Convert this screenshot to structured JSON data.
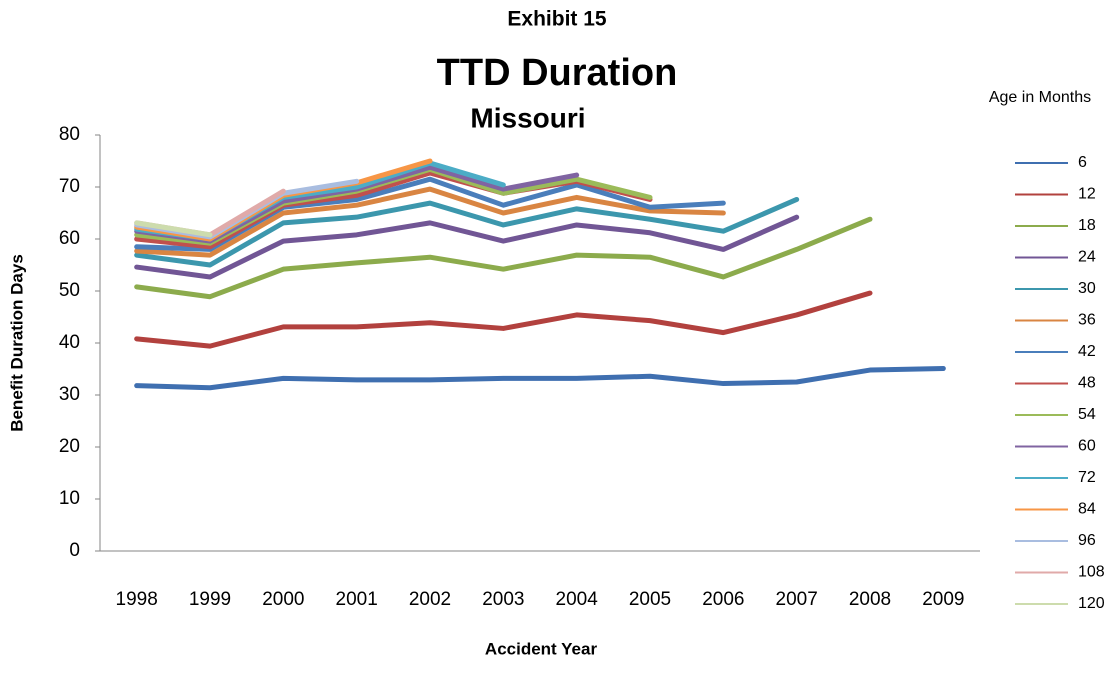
{
  "chart_data": {
    "type": "line",
    "supertitle": "Exhibit 15",
    "title": "TTD Duration",
    "subtitle": "Missouri",
    "x_label": "Accident Year",
    "y_label": "Benefit Duration Days",
    "legend_title": "Age in Months",
    "categories": [
      "1998",
      "1999",
      "2000",
      "2001",
      "2002",
      "2003",
      "2004",
      "2005",
      "2006",
      "2007",
      "2008",
      "2009"
    ],
    "ylim": [
      0,
      80
    ],
    "yticks": [
      0,
      10,
      20,
      30,
      40,
      50,
      60,
      70,
      80
    ],
    "grid": false,
    "legend": "right",
    "series": [
      {
        "name": "6",
        "color": "#3f6fb0",
        "values": [
          31.8,
          31.4,
          33.2,
          32.9,
          32.9,
          33.2,
          33.2,
          33.6,
          32.2,
          32.5,
          34.8,
          35.1
        ]
      },
      {
        "name": "12",
        "color": "#b2413e",
        "values": [
          40.8,
          39.4,
          43.1,
          43.1,
          43.9,
          42.8,
          45.4,
          44.3,
          42.0,
          45.4,
          49.6,
          null
        ]
      },
      {
        "name": "18",
        "color": "#8cab4c",
        "values": [
          50.8,
          48.9,
          54.2,
          55.4,
          56.5,
          54.2,
          56.9,
          56.5,
          52.7,
          58.0,
          63.8,
          null
        ]
      },
      {
        "name": "24",
        "color": "#715695",
        "values": [
          54.6,
          52.7,
          59.6,
          60.8,
          63.1,
          59.6,
          62.7,
          61.2,
          58.0,
          64.2,
          null,
          null
        ]
      },
      {
        "name": "30",
        "color": "#3c97ad",
        "values": [
          56.9,
          55.0,
          63.1,
          64.2,
          66.9,
          62.7,
          65.8,
          63.8,
          61.5,
          67.6,
          null,
          null
        ]
      },
      {
        "name": "36",
        "color": "#d98542",
        "values": [
          57.7,
          56.9,
          65.0,
          66.5,
          69.6,
          65.0,
          68.0,
          65.4,
          65.0,
          null,
          null,
          null
        ]
      },
      {
        "name": "42",
        "color": "#4a7ebb",
        "values": [
          58.5,
          58.0,
          66.1,
          67.6,
          71.5,
          66.5,
          70.4,
          66.1,
          66.9,
          null,
          null,
          null
        ]
      },
      {
        "name": "48",
        "color": "#c0504d",
        "values": [
          60.0,
          58.5,
          66.5,
          68.4,
          72.7,
          68.8,
          71.1,
          67.6,
          null,
          null,
          null,
          null
        ]
      },
      {
        "name": "54",
        "color": "#9bbb59",
        "values": [
          60.8,
          59.2,
          66.9,
          69.2,
          73.4,
          68.8,
          71.5,
          68.0,
          null,
          null,
          null,
          null
        ]
      },
      {
        "name": "60",
        "color": "#8064a2",
        "values": [
          61.5,
          59.6,
          67.3,
          69.6,
          73.8,
          69.6,
          72.3,
          null,
          null,
          null,
          null,
          null
        ]
      },
      {
        "name": "72",
        "color": "#4bacc6",
        "values": [
          61.9,
          60.0,
          68.0,
          70.0,
          74.6,
          70.4,
          null,
          null,
          null,
          null,
          null,
          null
        ]
      },
      {
        "name": "84",
        "color": "#f79646",
        "values": [
          62.3,
          60.0,
          68.4,
          70.8,
          75.0,
          null,
          null,
          null,
          null,
          null,
          null,
          null
        ]
      },
      {
        "name": "96",
        "color": "#a9bde0",
        "values": [
          62.7,
          60.4,
          68.8,
          71.1,
          null,
          null,
          null,
          null,
          null,
          null,
          null,
          null
        ]
      },
      {
        "name": "108",
        "color": "#e0aaa9",
        "values": [
          63.1,
          60.8,
          69.2,
          null,
          null,
          null,
          null,
          null,
          null,
          null,
          null,
          null
        ]
      },
      {
        "name": "120",
        "color": "#cddcad",
        "values": [
          63.1,
          60.8,
          null,
          null,
          null,
          null,
          null,
          null,
          null,
          null,
          null,
          null
        ]
      }
    ]
  }
}
